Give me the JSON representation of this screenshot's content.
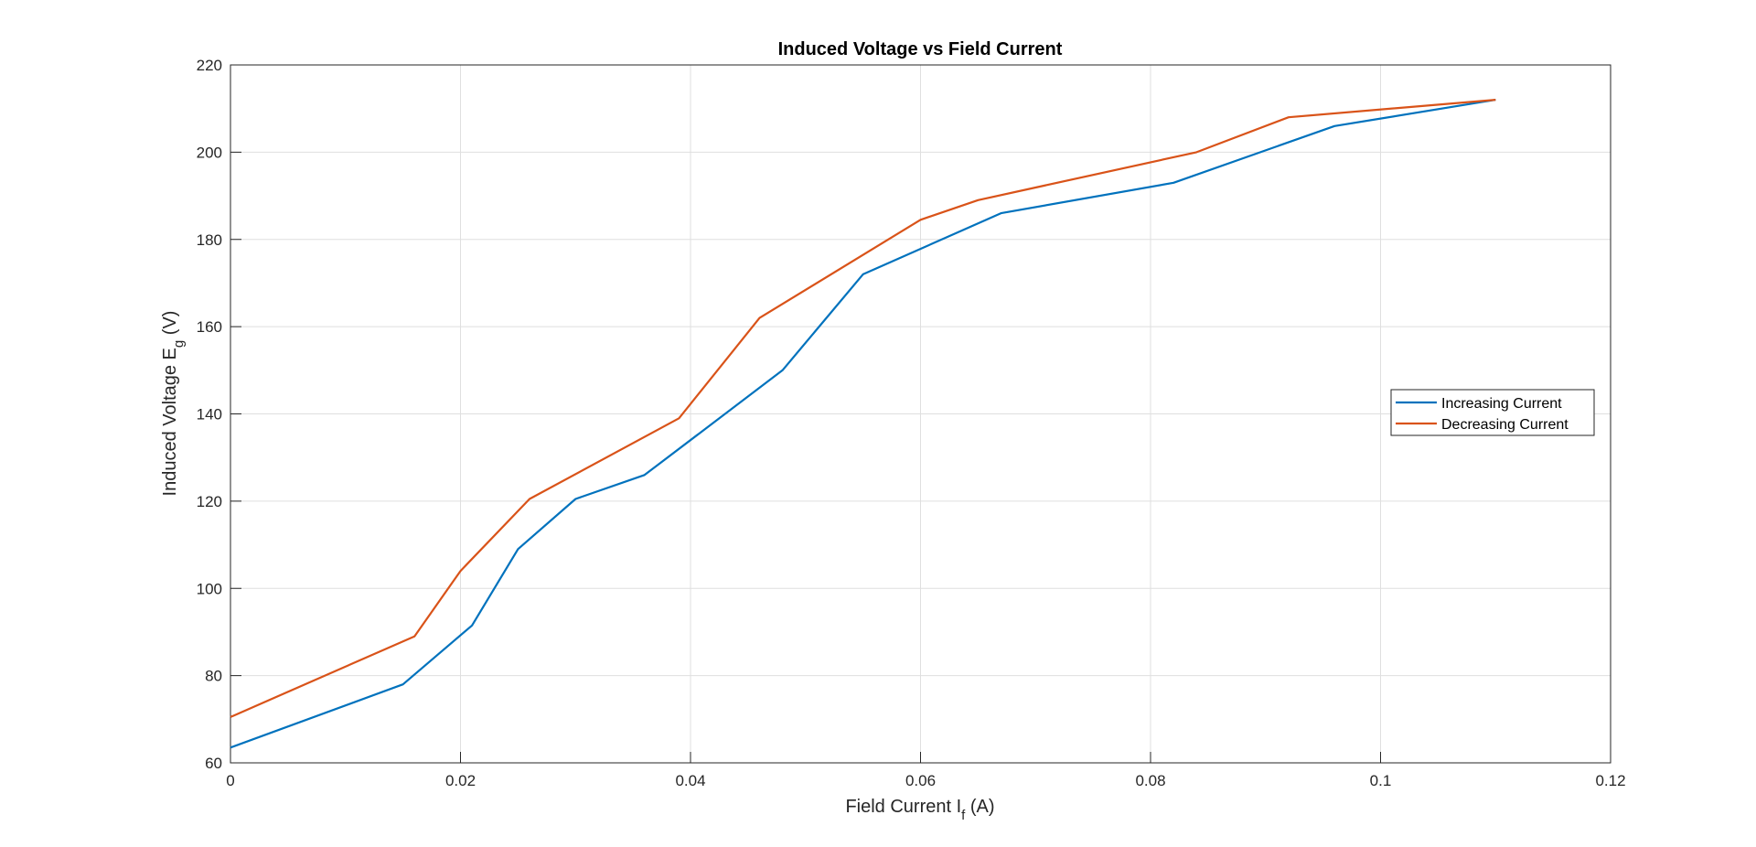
{
  "chart_data": {
    "type": "line",
    "title": "Induced Voltage vs Field Current",
    "xlabel": {
      "main": "Field Current I",
      "sub": "f",
      "tail": " (A)"
    },
    "ylabel": {
      "main": "Induced Voltage E",
      "sub": "g",
      "tail": "  (V)"
    },
    "xlim": [
      0,
      0.12
    ],
    "ylim": [
      60,
      220
    ],
    "xticks": [
      0,
      0.02,
      0.04,
      0.06,
      0.08,
      0.1,
      0.12
    ],
    "xtick_labels": [
      "0",
      "0.02",
      "0.04",
      "0.06",
      "0.08",
      "0.1",
      "0.12"
    ],
    "yticks": [
      60,
      80,
      100,
      120,
      140,
      160,
      180,
      200,
      220
    ],
    "ytick_labels": [
      "60",
      "80",
      "100",
      "120",
      "140",
      "160",
      "180",
      "200",
      "220"
    ],
    "grid": true,
    "legend_position": "right",
    "series": [
      {
        "name": "Increasing Current",
        "color": "#0072BD",
        "x": [
          0,
          0.015,
          0.021,
          0.025,
          0.03,
          0.036,
          0.048,
          0.055,
          0.067,
          0.082,
          0.096,
          0.11
        ],
        "y": [
          63.5,
          78,
          91.5,
          109,
          120.5,
          126,
          150,
          172,
          186,
          193,
          206,
          212
        ]
      },
      {
        "name": "Decreasing Current",
        "color": "#D95319",
        "x": [
          0,
          0.016,
          0.02,
          0.026,
          0.039,
          0.046,
          0.06,
          0.065,
          0.084,
          0.092,
          0.11
        ],
        "y": [
          70.5,
          89,
          104,
          120.5,
          139,
          162,
          184.5,
          189,
          200,
          208,
          212
        ]
      }
    ]
  }
}
